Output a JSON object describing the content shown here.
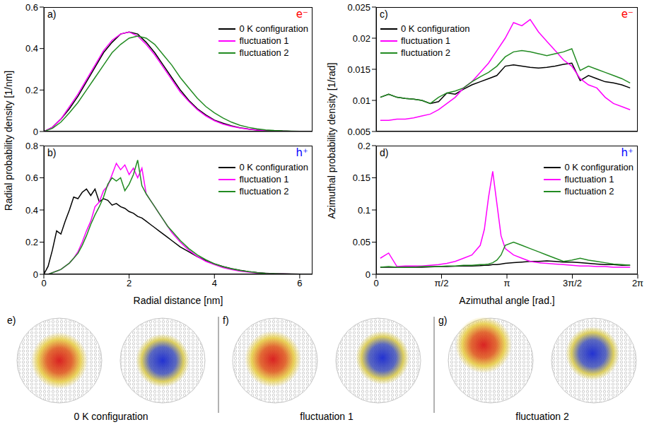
{
  "chart_data": [
    {
      "panel": "a)",
      "type": "line",
      "annotation": {
        "text": "e⁻",
        "color": "#ff0000"
      },
      "y_label": "Radial probability density [1/nm]",
      "x": [
        0,
        0.2,
        0.4,
        0.6,
        0.8,
        1.0,
        1.2,
        1.4,
        1.6,
        1.8,
        2.0,
        2.2,
        2.4,
        2.6,
        2.8,
        3.0,
        3.2,
        3.4,
        3.6,
        3.8,
        4.0,
        4.2,
        4.4,
        4.6,
        4.8,
        5.0,
        5.2,
        5.4,
        5.6,
        5.8,
        6.0,
        6.2
      ],
      "series": [
        {
          "name": "0 K configuration",
          "color": "#000000",
          "values": [
            0,
            0.02,
            0.06,
            0.11,
            0.17,
            0.24,
            0.31,
            0.38,
            0.43,
            0.47,
            0.48,
            0.47,
            0.43,
            0.38,
            0.32,
            0.26,
            0.2,
            0.15,
            0.11,
            0.08,
            0.055,
            0.04,
            0.027,
            0.018,
            0.012,
            0.008,
            0.005,
            0.003,
            0.002,
            0.001,
            0.0005,
            0
          ]
        },
        {
          "name": "fluctuation 1",
          "color": "#ff00ff",
          "values": [
            0,
            0.02,
            0.06,
            0.12,
            0.18,
            0.25,
            0.32,
            0.39,
            0.44,
            0.47,
            0.48,
            0.46,
            0.42,
            0.37,
            0.31,
            0.25,
            0.19,
            0.145,
            0.105,
            0.075,
            0.052,
            0.036,
            0.025,
            0.017,
            0.011,
            0.007,
            0.004,
            0.003,
            0.002,
            0.001,
            0.0005,
            0
          ]
        },
        {
          "name": "fluctuation 2",
          "color": "#228b22",
          "values": [
            0,
            0.015,
            0.045,
            0.09,
            0.14,
            0.2,
            0.26,
            0.32,
            0.38,
            0.42,
            0.45,
            0.46,
            0.45,
            0.42,
            0.37,
            0.32,
            0.26,
            0.21,
            0.16,
            0.12,
            0.09,
            0.065,
            0.045,
            0.03,
            0.02,
            0.013,
            0.008,
            0.005,
            0.003,
            0.002,
            0.001,
            0
          ]
        }
      ],
      "xlim": [
        0,
        6.3
      ],
      "xticks": [
        0,
        2,
        4,
        6
      ],
      "ylim": [
        0,
        0.6
      ],
      "yticks": [
        0,
        0.2,
        0.4,
        0.6
      ],
      "legend": "top-right",
      "tick_labels": "y"
    },
    {
      "panel": "b)",
      "type": "line",
      "annotation": {
        "text": "h⁺",
        "color": "#0000ff"
      },
      "x_label": "Radial distance [nm]",
      "x": [
        0,
        0.1,
        0.2,
        0.3,
        0.4,
        0.5,
        0.6,
        0.7,
        0.8,
        0.9,
        1.0,
        1.1,
        1.2,
        1.3,
        1.4,
        1.5,
        1.6,
        1.7,
        1.8,
        1.9,
        2.0,
        2.1,
        2.2,
        2.3,
        2.4,
        2.5,
        2.6,
        2.7,
        2.8,
        2.9,
        3.0,
        3.2,
        3.4,
        3.6,
        3.8,
        4.0,
        4.2,
        4.4,
        4.6,
        4.8,
        5.0,
        5.2,
        5.4,
        5.6,
        5.8,
        6.0,
        6.2
      ],
      "series": [
        {
          "name": "0 K configuration",
          "color": "#000000",
          "values": [
            0,
            0.05,
            0.15,
            0.27,
            0.25,
            0.33,
            0.4,
            0.48,
            0.47,
            0.51,
            0.53,
            0.49,
            0.53,
            0.45,
            0.47,
            0.46,
            0.43,
            0.44,
            0.42,
            0.41,
            0.39,
            0.38,
            0.36,
            0.35,
            0.33,
            0.31,
            0.29,
            0.27,
            0.25,
            0.23,
            0.21,
            0.17,
            0.14,
            0.11,
            0.085,
            0.065,
            0.048,
            0.035,
            0.025,
            0.017,
            0.011,
            0.007,
            0.004,
            0.003,
            0.002,
            0.001,
            0
          ]
        },
        {
          "name": "fluctuation 1",
          "color": "#ff00ff",
          "values": [
            0,
            0,
            0.01,
            0.02,
            0.03,
            0.05,
            0.07,
            0.1,
            0.14,
            0.2,
            0.27,
            0.33,
            0.42,
            0.45,
            0.52,
            0.55,
            0.62,
            0.69,
            0.65,
            0.68,
            0.62,
            0.66,
            0.6,
            0.66,
            0.5,
            0.46,
            0.42,
            0.38,
            0.34,
            0.3,
            0.26,
            0.2,
            0.15,
            0.11,
            0.08,
            0.06,
            0.042,
            0.03,
            0.02,
            0.013,
            0.008,
            0.005,
            0.003,
            0.002,
            0.001,
            0.0005,
            0
          ]
        },
        {
          "name": "fluctuation 2",
          "color": "#228b22",
          "values": [
            0,
            0,
            0.01,
            0.02,
            0.03,
            0.05,
            0.07,
            0.1,
            0.13,
            0.18,
            0.24,
            0.31,
            0.37,
            0.42,
            0.48,
            0.56,
            0.6,
            0.58,
            0.6,
            0.52,
            0.56,
            0.62,
            0.71,
            0.55,
            0.5,
            0.46,
            0.42,
            0.38,
            0.34,
            0.3,
            0.27,
            0.21,
            0.16,
            0.12,
            0.09,
            0.065,
            0.047,
            0.034,
            0.024,
            0.016,
            0.01,
            0.006,
            0.004,
            0.002,
            0.001,
            0.0005,
            0
          ]
        }
      ],
      "xlim": [
        0,
        6.3
      ],
      "xticks": [
        0,
        2,
        4,
        6
      ],
      "ylim": [
        0,
        0.8
      ],
      "yticks": [
        0,
        0.2,
        0.4,
        0.6,
        0.8
      ],
      "legend": "top-right"
    },
    {
      "panel": "c)",
      "type": "line",
      "annotation": {
        "text": "e⁻",
        "color": "#ff0000"
      },
      "y_label": "Azimuthal probability density [1/rad]",
      "x": [
        0.1,
        0.3,
        0.5,
        0.7,
        0.9,
        1.1,
        1.3,
        1.5,
        1.7,
        1.9,
        2.1,
        2.3,
        2.5,
        2.7,
        2.9,
        3.1,
        3.3,
        3.5,
        3.7,
        3.9,
        4.1,
        4.3,
        4.5,
        4.7,
        4.9,
        5.1,
        5.3,
        5.5,
        5.7,
        5.9,
        6.1
      ],
      "series": [
        {
          "name": "0 K configuration",
          "color": "#000000",
          "values": [
            0.0105,
            0.011,
            0.0105,
            0.0103,
            0.0102,
            0.01,
            0.0095,
            0.0098,
            0.0112,
            0.011,
            0.0118,
            0.0125,
            0.013,
            0.0135,
            0.014,
            0.0155,
            0.0157,
            0.0155,
            0.0153,
            0.0152,
            0.0153,
            0.0155,
            0.0158,
            0.016,
            0.0132,
            0.014,
            0.0135,
            0.013,
            0.0128,
            0.0125,
            0.012
          ]
        },
        {
          "name": "fluctuation 1",
          "color": "#ff00ff",
          "values": [
            0.0068,
            0.0068,
            0.007,
            0.007,
            0.0072,
            0.0075,
            0.0078,
            0.0085,
            0.0095,
            0.0105,
            0.012,
            0.013,
            0.0145,
            0.016,
            0.018,
            0.02,
            0.0225,
            0.022,
            0.023,
            0.021,
            0.0195,
            0.018,
            0.0165,
            0.0155,
            0.0135,
            0.0125,
            0.012,
            0.0105,
            0.0095,
            0.009,
            0.0085
          ]
        },
        {
          "name": "fluctuation 2",
          "color": "#228b22",
          "values": [
            0.0105,
            0.011,
            0.0105,
            0.0103,
            0.0102,
            0.01,
            0.0095,
            0.0105,
            0.0112,
            0.0115,
            0.012,
            0.013,
            0.0138,
            0.0145,
            0.0155,
            0.017,
            0.0178,
            0.018,
            0.0178,
            0.0175,
            0.0172,
            0.0175,
            0.0178,
            0.0183,
            0.0148,
            0.0155,
            0.015,
            0.0145,
            0.014,
            0.0135,
            0.0128
          ]
        }
      ],
      "xlim": [
        0,
        6.2832
      ],
      "xticks": [
        0,
        {
          "value": 1.5708,
          "label": "π/2"
        },
        {
          "value": 3.1416,
          "label": "π"
        },
        {
          "value": 4.7124,
          "label": "3π/2"
        },
        {
          "value": 6.2832,
          "label": "2π"
        }
      ],
      "ylim": [
        0.005,
        0.025
      ],
      "yticks": [
        0.005,
        0.01,
        0.015,
        0.02,
        0.025
      ],
      "legend": "top-left",
      "tick_labels": "y"
    },
    {
      "panel": "d)",
      "type": "line",
      "annotation": {
        "text": "h⁺",
        "color": "#0000ff"
      },
      "x_label": "Azimuthal angle [rad.]",
      "x": [
        0.1,
        0.3,
        0.5,
        0.7,
        0.9,
        1.1,
        1.3,
        1.5,
        1.7,
        1.9,
        2.1,
        2.3,
        2.5,
        2.6,
        2.7,
        2.8,
        2.9,
        3.0,
        3.1,
        3.3,
        3.5,
        3.7,
        3.9,
        4.1,
        4.3,
        4.5,
        4.7,
        4.9,
        5.1,
        5.3,
        5.5,
        5.7,
        5.9,
        6.1
      ],
      "series": [
        {
          "name": "0 K configuration",
          "color": "#000000",
          "values": [
            0.011,
            0.011,
            0.011,
            0.011,
            0.011,
            0.011,
            0.0115,
            0.012,
            0.012,
            0.0125,
            0.013,
            0.013,
            0.0135,
            0.014,
            0.014,
            0.015,
            0.015,
            0.016,
            0.017,
            0.018,
            0.019,
            0.02,
            0.02,
            0.021,
            0.02,
            0.019,
            0.019,
            0.018,
            0.017,
            0.016,
            0.015,
            0.015,
            0.014,
            0.014
          ]
        },
        {
          "name": "fluctuation 1",
          "color": "#ff00ff",
          "values": [
            0.025,
            0.033,
            0.012,
            0.013,
            0.013,
            0.013,
            0.014,
            0.015,
            0.017,
            0.02,
            0.025,
            0.03,
            0.045,
            0.07,
            0.12,
            0.16,
            0.11,
            0.06,
            0.04,
            0.03,
            0.025,
            0.02,
            0.018,
            0.017,
            0.016,
            0.015,
            0.014,
            0.013,
            0.013,
            0.012,
            0.012,
            0.011,
            0.011,
            0.011
          ]
        },
        {
          "name": "fluctuation 2",
          "color": "#228b22",
          "values": [
            0.011,
            0.012,
            0.011,
            0.011,
            0.011,
            0.012,
            0.012,
            0.012,
            0.013,
            0.013,
            0.014,
            0.014,
            0.015,
            0.015,
            0.016,
            0.018,
            0.022,
            0.03,
            0.045,
            0.05,
            0.045,
            0.04,
            0.035,
            0.03,
            0.025,
            0.02,
            0.022,
            0.025,
            0.022,
            0.02,
            0.018,
            0.016,
            0.015,
            0.014
          ]
        }
      ],
      "xlim": [
        0,
        6.2832
      ],
      "xticks": [
        0,
        {
          "value": 1.5708,
          "label": "π/2"
        },
        {
          "value": 3.1416,
          "label": "π"
        },
        {
          "value": 4.7124,
          "label": "3π/2"
        },
        {
          "value": 6.2832,
          "label": "2π"
        }
      ],
      "ylim": [
        0,
        0.2
      ],
      "yticks": [
        0,
        0.05,
        0.1,
        0.15,
        0.2
      ],
      "legend": "top-right"
    }
  ],
  "images": [
    {
      "panel": "e)",
      "caption": "0 K configuration"
    },
    {
      "panel": "f)",
      "caption": "fluctuation 1"
    },
    {
      "panel": "g)",
      "caption": "fluctuation 2"
    }
  ]
}
